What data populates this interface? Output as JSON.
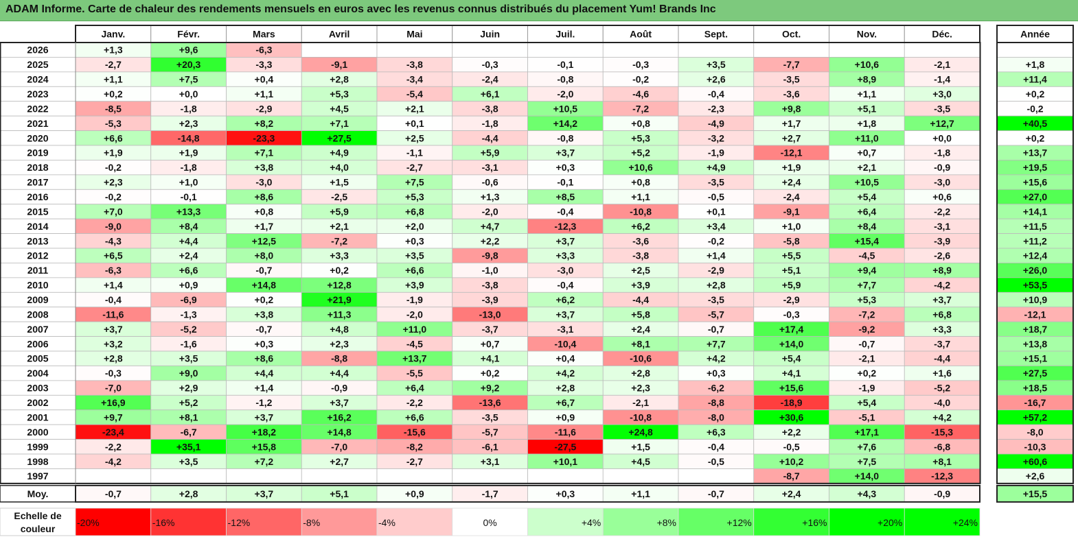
{
  "title": "ADAM Informe. Carte de chaleur des rendements mensuels en euros avec les revenus connus distribués du placement Yum! Brands Inc",
  "chart_data": {
    "type": "heatmap",
    "months": [
      "Janv.",
      "Févr.",
      "Mars",
      "Avril",
      "Mai",
      "Juin",
      "Juil.",
      "Août",
      "Sept.",
      "Oct.",
      "Nov.",
      "Déc."
    ],
    "year_header": "Année",
    "avg_label": "Moy.",
    "scale_label_lines": [
      "Echelle de",
      "couleur"
    ],
    "rows": [
      {
        "year": "2026",
        "values": [
          "+1,3",
          "+9,6",
          "-6,3",
          "",
          "",
          "",
          "",
          "",
          "",
          "",
          "",
          ""
        ],
        "annual": ""
      },
      {
        "year": "2025",
        "values": [
          "-2,7",
          "+20,3",
          "-3,3",
          "-9,1",
          "-3,8",
          "-0,3",
          "-0,1",
          "-0,3",
          "+3,5",
          "-7,7",
          "+10,6",
          "-2,1"
        ],
        "annual": "+1,8"
      },
      {
        "year": "2024",
        "values": [
          "+1,1",
          "+7,5",
          "+0,4",
          "+2,8",
          "-3,4",
          "-2,4",
          "-0,8",
          "-0,2",
          "+2,6",
          "-3,5",
          "+8,9",
          "-1,4"
        ],
        "annual": "+11,4"
      },
      {
        "year": "2023",
        "values": [
          "+0,2",
          "+0,0",
          "+1,1",
          "+5,3",
          "-5,4",
          "+6,1",
          "-2,0",
          "-4,6",
          "-0,4",
          "-3,6",
          "+1,1",
          "+3,0"
        ],
        "annual": "+0,2"
      },
      {
        "year": "2022",
        "values": [
          "-8,5",
          "-1,8",
          "-2,9",
          "+4,5",
          "+2,1",
          "-3,8",
          "+10,5",
          "-7,2",
          "-2,3",
          "+9,8",
          "+5,1",
          "-3,5"
        ],
        "annual": "-0,2"
      },
      {
        "year": "2021",
        "values": [
          "-5,3",
          "+2,3",
          "+8,2",
          "+7,1",
          "+0,1",
          "-1,8",
          "+14,2",
          "+0,8",
          "-4,9",
          "+1,7",
          "+1,8",
          "+12,7"
        ],
        "annual": "+40,5"
      },
      {
        "year": "2020",
        "values": [
          "+6,6",
          "-14,8",
          "-23,3",
          "+27,5",
          "+2,5",
          "-4,4",
          "-0,8",
          "+5,3",
          "-3,2",
          "+2,7",
          "+11,0",
          "+0,0"
        ],
        "annual": "+0,2"
      },
      {
        "year": "2019",
        "values": [
          "+1,9",
          "+1,9",
          "+7,1",
          "+4,9",
          "-1,1",
          "+5,9",
          "+3,7",
          "+5,2",
          "-1,9",
          "-12,1",
          "+0,7",
          "-1,8"
        ],
        "annual": "+13,7"
      },
      {
        "year": "2018",
        "values": [
          "-0,2",
          "-1,8",
          "+3,8",
          "+4,0",
          "-2,7",
          "-3,1",
          "+0,3",
          "+10,6",
          "+4,9",
          "+1,9",
          "+2,1",
          "-0,9"
        ],
        "annual": "+19,5"
      },
      {
        "year": "2017",
        "values": [
          "+2,3",
          "+1,0",
          "-3,0",
          "+1,5",
          "+7,5",
          "-0,6",
          "-0,1",
          "+0,8",
          "-3,5",
          "+2,4",
          "+10,5",
          "-3,0"
        ],
        "annual": "+15,6"
      },
      {
        "year": "2016",
        "values": [
          "-0,2",
          "-0,1",
          "+8,6",
          "-2,5",
          "+5,3",
          "+1,3",
          "+8,5",
          "+1,1",
          "-0,5",
          "-2,4",
          "+5,4",
          "+0,6"
        ],
        "annual": "+27,0"
      },
      {
        "year": "2015",
        "values": [
          "+7,0",
          "+13,3",
          "+0,8",
          "+5,9",
          "+6,8",
          "-2,0",
          "-0,4",
          "-10,8",
          "+0,1",
          "-9,1",
          "+6,4",
          "-2,2"
        ],
        "annual": "+14,1"
      },
      {
        "year": "2014",
        "values": [
          "-9,0",
          "+8,4",
          "+1,7",
          "+2,1",
          "+2,0",
          "+4,7",
          "-12,3",
          "+6,2",
          "+3,4",
          "+1,0",
          "+8,4",
          "-3,1"
        ],
        "annual": "+11,5"
      },
      {
        "year": "2013",
        "values": [
          "-4,3",
          "+4,4",
          "+12,5",
          "-7,2",
          "+0,3",
          "+2,2",
          "+3,7",
          "-3,6",
          "-0,2",
          "-5,8",
          "+15,4",
          "-3,9"
        ],
        "annual": "+11,2"
      },
      {
        "year": "2012",
        "values": [
          "+6,5",
          "+2,4",
          "+8,0",
          "+3,3",
          "+3,5",
          "-9,8",
          "+3,3",
          "-3,8",
          "+1,4",
          "+5,5",
          "-4,5",
          "-2,6"
        ],
        "annual": "+12,4"
      },
      {
        "year": "2011",
        "values": [
          "-6,3",
          "+6,6",
          "-0,7",
          "+0,2",
          "+6,6",
          "-1,0",
          "-3,0",
          "+2,5",
          "-2,9",
          "+5,1",
          "+9,4",
          "+8,9"
        ],
        "annual": "+26,0"
      },
      {
        "year": "2010",
        "values": [
          "+1,4",
          "+0,9",
          "+14,8",
          "+12,8",
          "+3,9",
          "-3,8",
          "-0,4",
          "+3,9",
          "+2,8",
          "+5,9",
          "+7,7",
          "-4,2"
        ],
        "annual": "+53,5"
      },
      {
        "year": "2009",
        "values": [
          "-0,4",
          "-6,9",
          "+0,2",
          "+21,9",
          "-1,9",
          "-3,9",
          "+6,2",
          "-4,4",
          "-3,5",
          "-2,9",
          "+5,3",
          "+3,7"
        ],
        "annual": "+10,9"
      },
      {
        "year": "2008",
        "values": [
          "-11,6",
          "-1,3",
          "+3,8",
          "+11,3",
          "-2,0",
          "-13,0",
          "+3,7",
          "+5,8",
          "-5,7",
          "-0,3",
          "-7,2",
          "+6,8"
        ],
        "annual": "-12,1"
      },
      {
        "year": "2007",
        "values": [
          "+3,7",
          "-5,2",
          "-0,7",
          "+4,8",
          "+11,0",
          "-3,7",
          "-3,1",
          "+2,4",
          "-0,7",
          "+17,4",
          "-9,2",
          "+3,3"
        ],
        "annual": "+18,7"
      },
      {
        "year": "2006",
        "values": [
          "+3,2",
          "-1,6",
          "+0,3",
          "+2,3",
          "-4,5",
          "+0,7",
          "-10,4",
          "+8,1",
          "+7,7",
          "+14,0",
          "-0,7",
          "-3,7"
        ],
        "annual": "+13,8"
      },
      {
        "year": "2005",
        "values": [
          "+2,8",
          "+3,5",
          "+8,6",
          "-8,8",
          "+13,7",
          "+4,1",
          "+0,4",
          "-10,6",
          "+4,2",
          "+5,4",
          "-2,1",
          "-4,4"
        ],
        "annual": "+15,1"
      },
      {
        "year": "2004",
        "values": [
          "-0,3",
          "+9,0",
          "+4,4",
          "+4,4",
          "-5,5",
          "+0,2",
          "+4,2",
          "+2,8",
          "+0,3",
          "+4,1",
          "+0,2",
          "+1,6"
        ],
        "annual": "+27,5"
      },
      {
        "year": "2003",
        "values": [
          "-7,0",
          "+2,9",
          "+1,4",
          "-0,9",
          "+6,4",
          "+9,2",
          "+2,8",
          "+2,3",
          "-6,2",
          "+15,6",
          "-1,9",
          "-5,2"
        ],
        "annual": "+18,5"
      },
      {
        "year": "2002",
        "values": [
          "+16,9",
          "+5,2",
          "-1,2",
          "+3,7",
          "-2,2",
          "-13,6",
          "+6,7",
          "-2,1",
          "-8,8",
          "-18,9",
          "+5,4",
          "-4,0"
        ],
        "annual": "-16,7"
      },
      {
        "year": "2001",
        "values": [
          "+9,7",
          "+8,1",
          "+3,7",
          "+16,2",
          "+6,6",
          "-3,5",
          "+0,9",
          "-10,8",
          "-8,0",
          "+30,6",
          "-5,1",
          "+4,2"
        ],
        "annual": "+57,2"
      },
      {
        "year": "2000",
        "values": [
          "-23,4",
          "-6,7",
          "+18,2",
          "+14,8",
          "-15,6",
          "-5,7",
          "-11,6",
          "+24,8",
          "+6,3",
          "+2,2",
          "+17,1",
          "-15,3"
        ],
        "annual": "-8,0"
      },
      {
        "year": "1999",
        "values": [
          "-2,2",
          "+35,1",
          "+15,8",
          "-7,0",
          "-8,2",
          "-6,1",
          "-27,5",
          "+1,5",
          "-0,4",
          "-0,5",
          "+7,6",
          "-6,8"
        ],
        "annual": "-10,3"
      },
      {
        "year": "1998",
        "values": [
          "-4,2",
          "+3,5",
          "+7,2",
          "+2,7",
          "-2,7",
          "+3,1",
          "+10,1",
          "+4,5",
          "-0,5",
          "+10,2",
          "+7,5",
          "+8,1"
        ],
        "annual": "+60,6"
      },
      {
        "year": "1997",
        "values": [
          "",
          "",
          "",
          "",
          "",
          "",
          "",
          "",
          "",
          "-8,7",
          "+14,0",
          "-12,3"
        ],
        "annual": "+2,6"
      }
    ],
    "averages": {
      "values": [
        "-0,7",
        "+2,8",
        "+3,7",
        "+5,1",
        "+0,9",
        "-1,7",
        "+0,3",
        "+1,1",
        "-0,7",
        "+2,4",
        "+4,3",
        "-0,9"
      ],
      "annual": "+15,5"
    },
    "color_scale": [
      {
        "label": "-20%",
        "value": -20,
        "color": "#ff0000"
      },
      {
        "label": "-16%",
        "value": -16,
        "color": "#ff3333"
      },
      {
        "label": "-12%",
        "value": -12,
        "color": "#ff6666"
      },
      {
        "label": "-8%",
        "value": -8,
        "color": "#ff9999"
      },
      {
        "label": "-4%",
        "value": -4,
        "color": "#ffcccc"
      },
      {
        "label": "0%",
        "value": 0,
        "color": "#ffffff"
      },
      {
        "label": "+4%",
        "value": 4,
        "color": "#ccffcc"
      },
      {
        "label": "+8%",
        "value": 8,
        "color": "#99ff99"
      },
      {
        "label": "+12%",
        "value": 12,
        "color": "#66ff66"
      },
      {
        "label": "+16%",
        "value": 16,
        "color": "#33ff33"
      },
      {
        "label": "+20%",
        "value": 20,
        "color": "#00ff00"
      },
      {
        "label": "+24%",
        "value": 24,
        "color": "#00ff00"
      }
    ],
    "colors": {
      "negative_max": "#ff0000",
      "neutral": "#ffffff",
      "positive_max": "#00ff00",
      "title_band": "#7dc97d"
    }
  }
}
